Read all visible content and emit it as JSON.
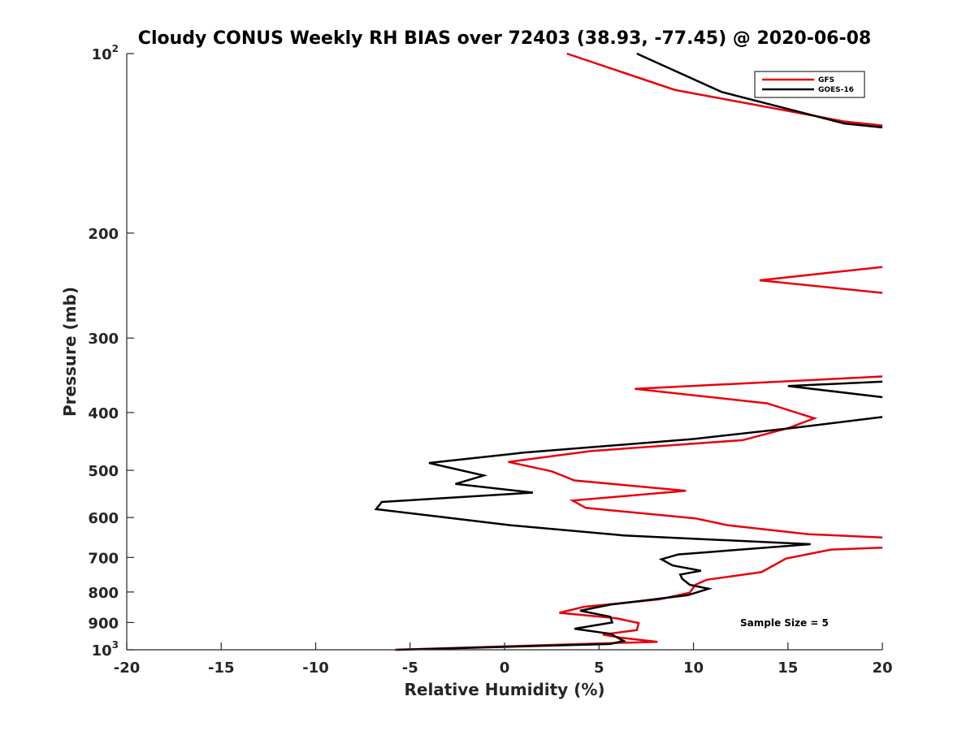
{
  "chart_data": {
    "type": "line",
    "title": "Cloudy CONUS Weekly RH BIAS over 72403 (38.93, -77.45) @ 2020-06-08",
    "xlabel": "Relative Humidity (%)",
    "ylabel": "Pressure (mb)",
    "xlim": [
      -20,
      20
    ],
    "ylim": [
      100,
      1000
    ],
    "yscale": "log",
    "y_reversed": true,
    "grid": false,
    "legend_position": "top-right",
    "x_ticks": [
      {
        "value": -20,
        "label": "-20"
      },
      {
        "value": -15,
        "label": "-15"
      },
      {
        "value": -10,
        "label": "-10"
      },
      {
        "value": -5,
        "label": "-5"
      },
      {
        "value": 0,
        "label": "0"
      },
      {
        "value": 5,
        "label": "5"
      },
      {
        "value": 10,
        "label": "10"
      },
      {
        "value": 15,
        "label": "15"
      },
      {
        "value": 20,
        "label": "20"
      }
    ],
    "y_ticks": [
      {
        "value": 100,
        "base": "10",
        "exp": "2"
      },
      {
        "value": 200,
        "base": "200",
        "exp": ""
      },
      {
        "value": 300,
        "base": "300",
        "exp": ""
      },
      {
        "value": 400,
        "base": "400",
        "exp": ""
      },
      {
        "value": 500,
        "base": "500",
        "exp": ""
      },
      {
        "value": 600,
        "base": "600",
        "exp": ""
      },
      {
        "value": 700,
        "base": "700",
        "exp": ""
      },
      {
        "value": 800,
        "base": "800",
        "exp": ""
      },
      {
        "value": 900,
        "base": "900",
        "exp": ""
      },
      {
        "value": 1000,
        "base": "10",
        "exp": "3"
      }
    ],
    "annotation": "Sample Size = 5",
    "series": [
      {
        "name": "GFS",
        "color": "#e8000b",
        "points": [
          [
            3.3,
            100
          ],
          [
            9.0,
            115
          ],
          [
            18.0,
            130
          ],
          [
            20.0,
            132
          ],
          [
            null,
            null
          ],
          [
            20.0,
            228
          ],
          [
            13.5,
            240
          ],
          [
            20.0,
            252
          ],
          [
            null,
            null
          ],
          [
            20.0,
            348
          ],
          [
            6.9,
            365
          ],
          [
            13.9,
            386
          ],
          [
            16.4,
            409
          ],
          [
            15.0,
            425
          ],
          [
            12.6,
            445
          ],
          [
            4.6,
            464
          ],
          [
            0.2,
            484
          ],
          [
            2.5,
            502
          ],
          [
            3.7,
            520
          ],
          [
            9.6,
            541
          ],
          [
            3.6,
            562
          ],
          [
            4.3,
            578
          ],
          [
            10.1,
            602
          ],
          [
            11.8,
            618
          ],
          [
            16.1,
            640
          ],
          [
            20.0,
            648
          ],
          [
            null,
            null
          ],
          [
            20.0,
            674
          ],
          [
            17.3,
            679
          ],
          [
            14.9,
            703
          ],
          [
            14.2,
            723
          ],
          [
            13.6,
            741
          ],
          [
            10.7,
            763
          ],
          [
            10.1,
            778
          ],
          [
            9.8,
            802
          ],
          [
            8.2,
            823
          ],
          [
            4.2,
            847
          ],
          [
            2.9,
            867
          ],
          [
            5.9,
            885
          ],
          [
            7.1,
            902
          ],
          [
            7.0,
            927
          ],
          [
            5.2,
            943
          ],
          [
            6.2,
            955
          ],
          [
            8.1,
            970
          ],
          [
            5.5,
            975
          ],
          [
            -5.8,
            1000
          ]
        ]
      },
      {
        "name": "GOES-16",
        "color": "#000000",
        "points": [
          [
            7.0,
            100
          ],
          [
            11.5,
            116
          ],
          [
            18.0,
            131
          ],
          [
            20.0,
            133
          ],
          [
            null,
            null
          ],
          [
            20.0,
            355
          ],
          [
            15.0,
            361
          ],
          [
            20.0,
            377
          ],
          [
            null,
            null
          ],
          [
            20.0,
            407
          ],
          [
            15.4,
            424
          ],
          [
            10.0,
            443
          ],
          [
            1.0,
            467
          ],
          [
            -4.0,
            486
          ],
          [
            -1.1,
            510
          ],
          [
            -2.6,
            527
          ],
          [
            1.5,
            545
          ],
          [
            -6.5,
            565
          ],
          [
            -6.8,
            581
          ],
          [
            -2.7,
            602
          ],
          [
            0.3,
            618
          ],
          [
            6.3,
            643
          ],
          [
            16.2,
            665
          ],
          [
            9.2,
            692
          ],
          [
            8.3,
            705
          ],
          [
            8.9,
            722
          ],
          [
            10.4,
            737
          ],
          [
            9.3,
            748
          ],
          [
            9.4,
            760
          ],
          [
            9.8,
            778
          ],
          [
            10.8,
            790
          ],
          [
            9.7,
            810
          ],
          [
            5.6,
            840
          ],
          [
            4.0,
            860
          ],
          [
            5.6,
            880
          ],
          [
            5.7,
            900
          ],
          [
            3.7,
            922
          ],
          [
            5.6,
            940
          ],
          [
            6.3,
            966
          ],
          [
            5.6,
            978
          ],
          [
            -5.7,
            1000
          ]
        ]
      }
    ]
  }
}
